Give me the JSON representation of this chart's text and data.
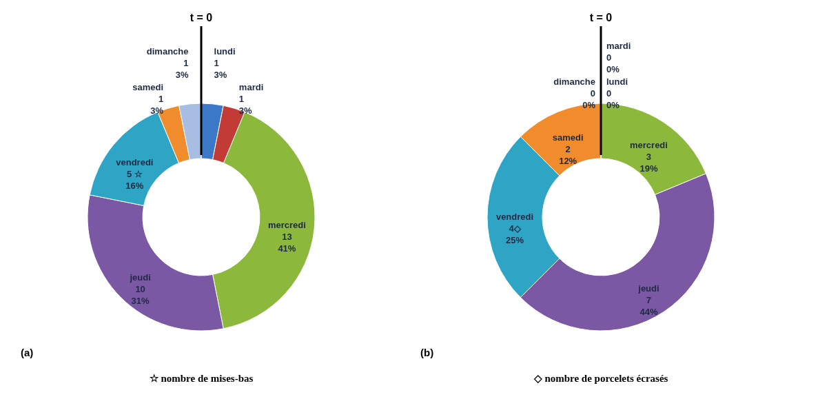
{
  "chart_data": [
    {
      "type": "donut",
      "categories": [
        "lundi",
        "mardi",
        "mercredi",
        "jeudi",
        "vendredi",
        "samedi",
        "dimanche"
      ],
      "values": [
        1,
        1,
        13,
        10,
        5,
        1,
        1
      ],
      "value_labels": [
        "1\n3%",
        "1\n3%",
        "13\n41%",
        "10\n31%",
        "5 ☆\n16%",
        "1\n3%",
        "1\n3%"
      ],
      "colors": [
        "#3c78c8",
        "#c23b35",
        "#8cb83c",
        "#7a58a4",
        "#2fa5c5",
        "#f08c2c",
        "#a8bde2"
      ],
      "annotations": [
        "t = 0",
        "(a)",
        "☆ nombre de mises-bas"
      ]
    },
    {
      "type": "donut",
      "categories": [
        "lundi",
        "mardi",
        "mercredi",
        "jeudi",
        "vendredi",
        "samedi",
        "dimanche"
      ],
      "values": [
        0,
        0,
        3,
        7,
        4,
        2,
        0
      ],
      "value_labels": [
        "0\n0%",
        "0\n0%",
        "3\n19%",
        "7\n44%",
        "4◇\n25%",
        "2\n12%",
        "0\n0%"
      ],
      "colors": [
        "#3c78c8",
        "#c23b35",
        "#8cb83c",
        "#7a58a4",
        "#2fa5c5",
        "#f08c2c",
        "#a8bde2"
      ],
      "annotations": [
        "t = 0",
        "(b)",
        "◇ nombre de porcelets écrasés"
      ]
    }
  ]
}
